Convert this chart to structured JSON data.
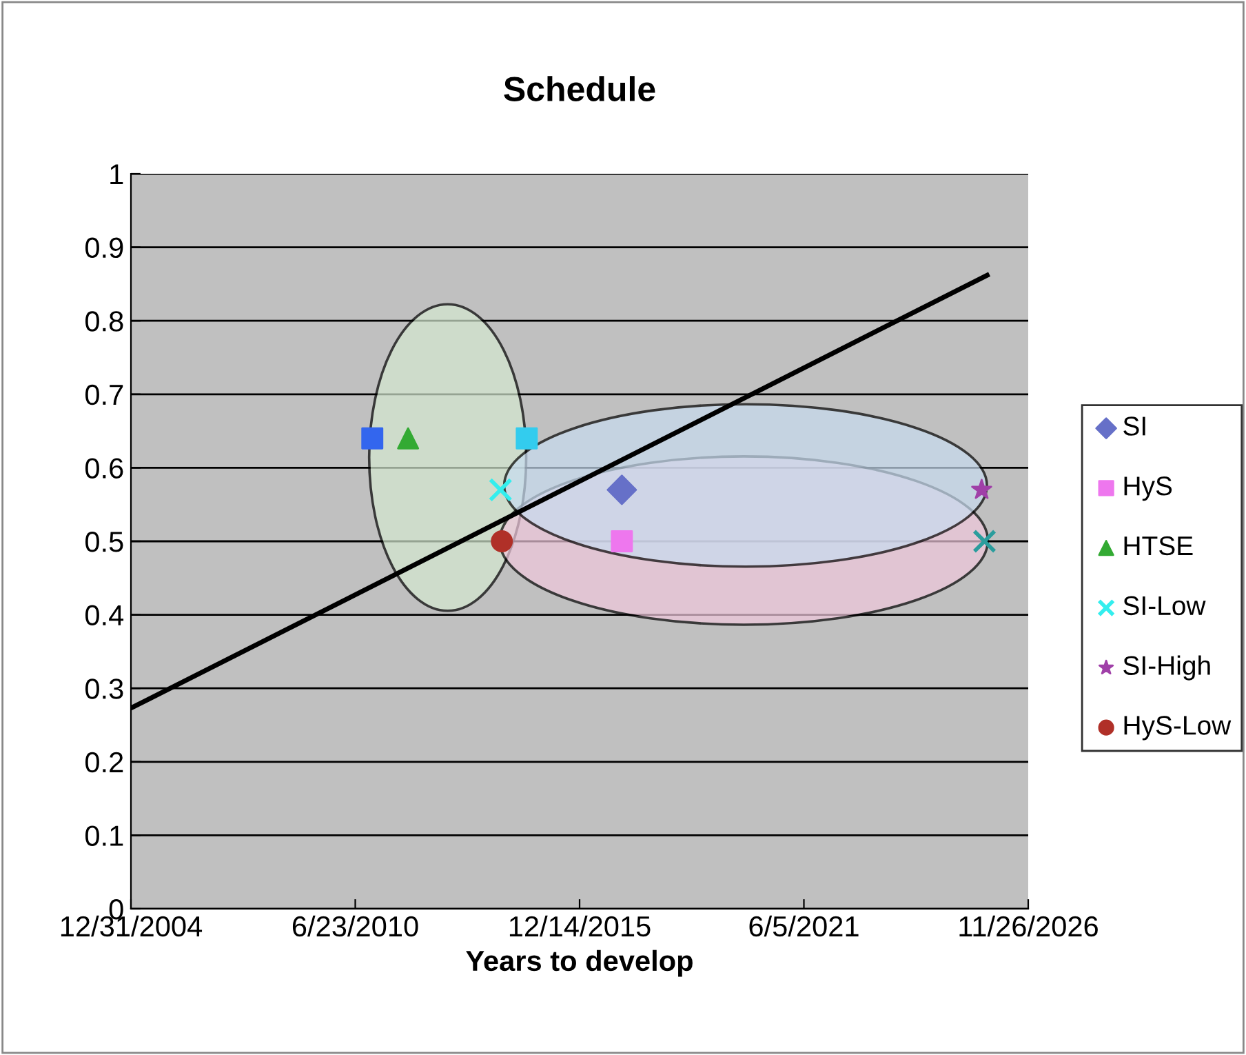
{
  "chart_data": {
    "type": "scatter",
    "title": "Schedule",
    "xlabel": "Years to develop",
    "xlim": [
      "2004-12-31",
      "2026-11-26"
    ],
    "xticks": [
      {
        "value": "2004-12-31",
        "label": "12/31/2004"
      },
      {
        "value": "2010-06-23",
        "label": "6/23/2010"
      },
      {
        "value": "2015-12-14",
        "label": "12/14/2015"
      },
      {
        "value": "2021-06-05",
        "label": "6/5/2021"
      },
      {
        "value": "2026-11-26",
        "label": "11/26/2026"
      }
    ],
    "ylim": [
      0,
      1
    ],
    "yticks": [
      0,
      0.1,
      0.2,
      0.3,
      0.4,
      0.5,
      0.6,
      0.7,
      0.8,
      0.9,
      1
    ],
    "grid": "y",
    "legend": "right",
    "series": [
      {
        "name": "SI",
        "color": "#6670c8",
        "marker": "diamond",
        "x": [
          "2016-12-25"
        ],
        "values": [
          0.57
        ]
      },
      {
        "name": "HyS",
        "color": "#ee77ee",
        "marker": "square",
        "x": [
          "2016-12-25"
        ],
        "values": [
          0.5
        ]
      },
      {
        "name": "HTSE",
        "color": "#33aa33",
        "marker": "triangle",
        "x": [
          "2011-10-07"
        ],
        "values": [
          0.64
        ]
      },
      {
        "name": "SI-Low",
        "color": "#33eeee",
        "marker": "cross",
        "x": [
          "2014-01-08"
        ],
        "values": [
          0.57
        ]
      },
      {
        "name": "SI-High",
        "color": "#a040a8",
        "marker": "star",
        "x": [
          "2025-10-07"
        ],
        "values": [
          0.57
        ]
      },
      {
        "name": "HyS-Low",
        "color": "#b03028",
        "marker": "circle",
        "x": [
          "2014-01-20"
        ],
        "values": [
          0.5
        ]
      },
      {
        "color": "#3366ee",
        "marker": "square",
        "x": [
          "2010-11-22"
        ],
        "values": [
          0.64
        ]
      },
      {
        "color": "#33ccee",
        "marker": "square",
        "x": [
          "2014-08-30"
        ],
        "values": [
          0.64
        ]
      },
      {
        "color": "#2a9d9d",
        "marker": "cross",
        "x": [
          "2025-11-01"
        ],
        "values": [
          0.5
        ]
      },
      {
        "type": "line",
        "color": "#000000",
        "marker": "none",
        "x": [
          "2004-12-31",
          "2025-11-25"
        ],
        "values": [
          0.273,
          0.862
        ]
      }
    ]
  }
}
